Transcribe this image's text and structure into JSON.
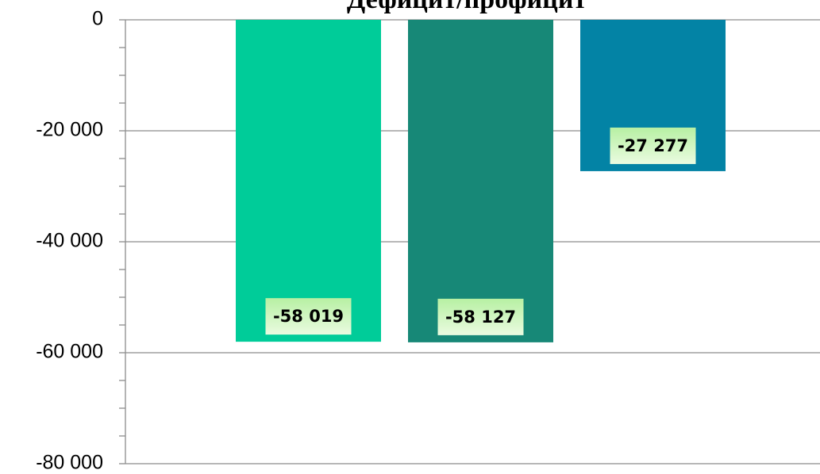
{
  "chart_data": {
    "type": "bar",
    "title": "Дефицит/профицит",
    "categories": [
      null,
      null,
      null
    ],
    "values": [
      -58019,
      -58127,
      -27277
    ],
    "value_labels": [
      "-58 019",
      "-58 127",
      "-27 277"
    ],
    "colors": [
      "#00cc99",
      "#178877",
      "#0383a5"
    ],
    "ylim": [
      -80000,
      0
    ],
    "yticks": [
      {
        "value": -80000,
        "label": "-80 000"
      },
      {
        "value": -60000,
        "label": "-60 000"
      },
      {
        "value": -40000,
        "label": "-40 000"
      },
      {
        "value": -20000,
        "label": "-20 000"
      },
      0
    ],
    "grid": true
  }
}
